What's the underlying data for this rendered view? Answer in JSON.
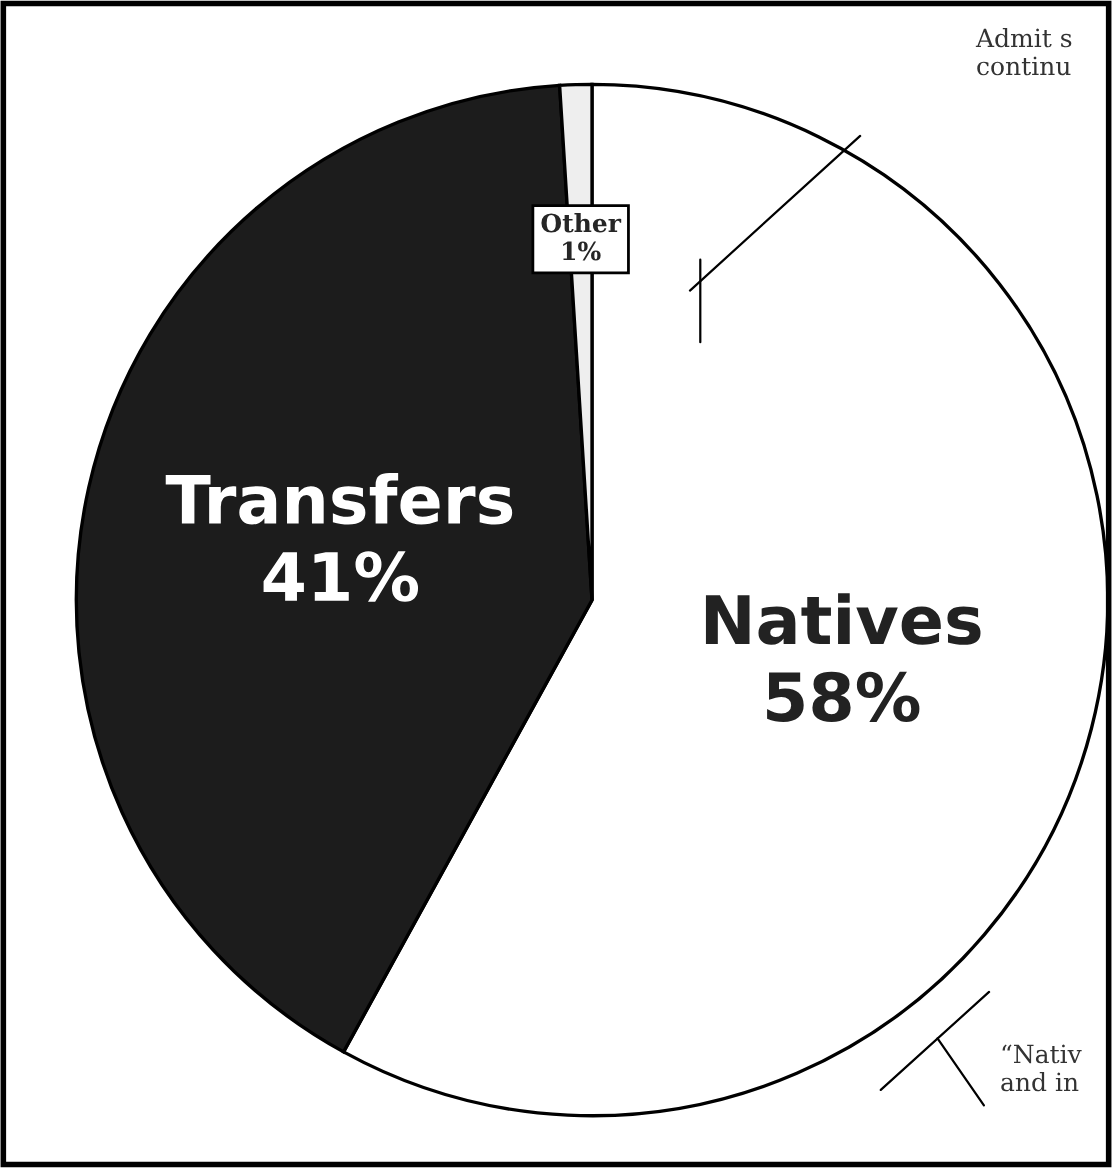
{
  "chart_data": {
    "type": "pie",
    "categories": [
      "Natives",
      "Transfers",
      "Other"
    ],
    "values": [
      58,
      41,
      1
    ],
    "value_labels": [
      "58%",
      "41%",
      "1%"
    ],
    "colors": [
      "#ffffff",
      "#1c1c1c",
      "#eeeeee"
    ],
    "annotations": [
      "Admit s\ncontinu",
      "“Nativ\nand in"
    ]
  }
}
